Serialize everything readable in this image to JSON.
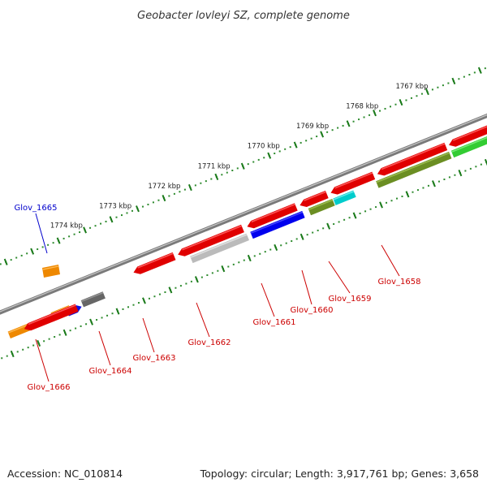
{
  "title": "Geobacter lovleyi SZ, complete genome",
  "footer": {
    "accession": "Accession: NC_010814",
    "topology": "Topology: circular; Length: 3,917,761 bp; Genes: 3,658"
  },
  "colors": {
    "backbone": "#8a8a8a",
    "tick_dots": "#2e8b2e",
    "label_red": "#cc0000",
    "label_blue": "#0000cc"
  },
  "scale_labels": [
    "1774 kbp",
    "1773 kbp",
    "1772 kbp",
    "1771 kbp",
    "1770 kbp",
    "1769 kbp",
    "1768 kbp",
    "1767 kbp"
  ],
  "genes": [
    {
      "name": "Glov_1658",
      "color": "#e00000",
      "highlight": "#ff6060",
      "label_color": "#cc0000"
    },
    {
      "name": "Glov_1659",
      "color": "#e00000",
      "highlight": "#ff6060",
      "label_color": "#cc0000"
    },
    {
      "name": "Glov_1660",
      "color": "#e00000",
      "highlight": "#ff6060",
      "label_color": "#cc0000"
    },
    {
      "name": "Glov_1661",
      "color": "#e00000",
      "highlight": "#ff6060",
      "label_color": "#cc0000"
    },
    {
      "name": "Glov_1662",
      "color": "#e00000",
      "highlight": "#ff6060",
      "label_color": "#cc0000"
    },
    {
      "name": "Glov_1663",
      "color": "#e00000",
      "highlight": "#ff6060",
      "label_color": "#cc0000"
    },
    {
      "name": "Glov_1664",
      "color": "#e00000",
      "highlight": "#ff6060",
      "label_color": "#cc0000"
    },
    {
      "name": "Glov_1665",
      "color": "#1010e0",
      "highlight": "#6060ff",
      "label_color": "#0000cc"
    },
    {
      "name": "Glov_1666",
      "color": "#e00000",
      "highlight": "#ff6060",
      "label_color": "#cc0000"
    }
  ],
  "cog_bars": [
    {
      "color": "#33cc33",
      "highlight": "#80ee80"
    },
    {
      "color": "#6b8e23",
      "highlight": "#a0c050"
    },
    {
      "color": "#00cccc",
      "highlight": "#70eeee"
    },
    {
      "color": "#6b8e23",
      "highlight": "#a0c050"
    },
    {
      "color": "#0000ee",
      "highlight": "#5050ff"
    },
    {
      "color": "#bbbbbb",
      "highlight": "#e6e6e6"
    },
    {
      "color": "#666666",
      "highlight": "#9a9a9a"
    },
    {
      "color": "#ee8800",
      "highlight": "#ffbb55"
    },
    {
      "color": "#ee8800",
      "highlight": "#ffbb55"
    }
  ]
}
